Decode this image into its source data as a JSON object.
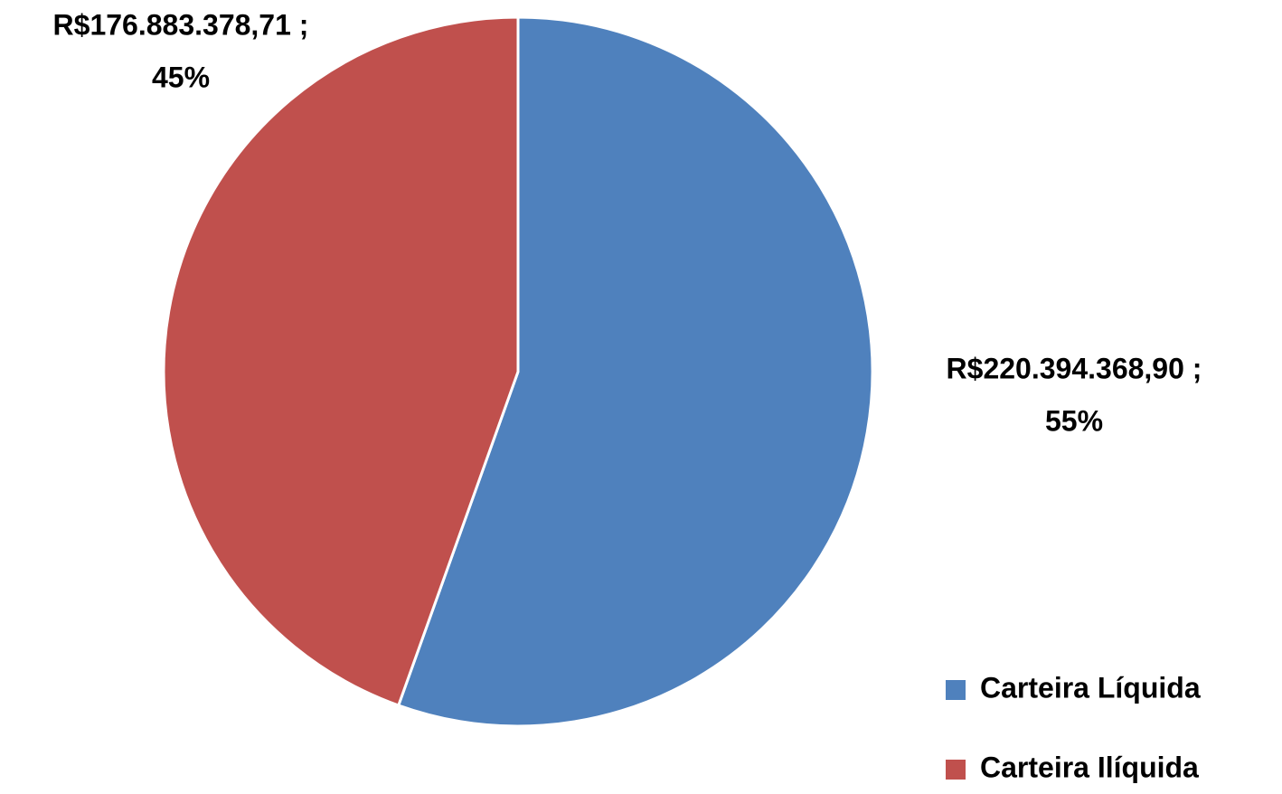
{
  "chart_data": {
    "type": "pie",
    "categories": [
      "Carteira Líquida",
      "Carteira Ilíquida"
    ],
    "values": [
      220394368.9,
      176883378.71
    ],
    "value_labels": [
      [
        "R$220.394.368,90 ;",
        "55%"
      ],
      [
        "R$176.883.378,71 ;",
        "45%"
      ]
    ],
    "colors": [
      "#4f81bd",
      "#c0504d"
    ],
    "legend": "bottom-right"
  }
}
